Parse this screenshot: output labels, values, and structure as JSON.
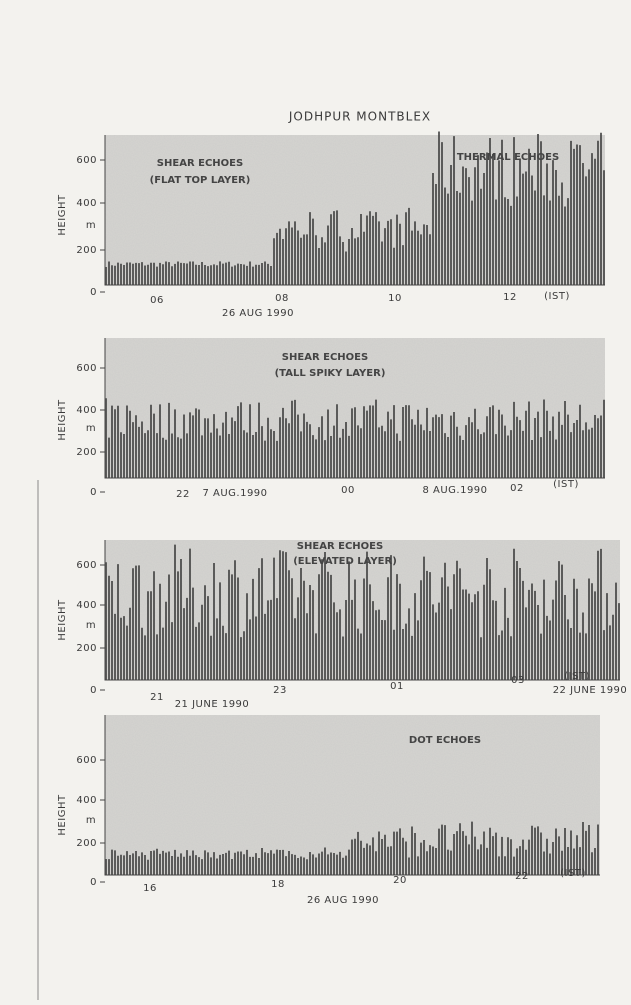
{
  "title": "JODHPUR MONTBLEX",
  "panels": [
    {
      "annotations": [
        "SHEAR ECHOES",
        "(FLAT TOP LAYER)",
        "THERMAL ECHOES"
      ],
      "y_axis_label": "HEIGHT",
      "y_unit": "m",
      "y_ticks": [
        "600",
        "400",
        "200",
        "0"
      ],
      "x_ticks": [
        "06",
        "08",
        "10",
        "12",
        "(IST)"
      ],
      "date_labels": [
        "26 AUG 1990"
      ]
    },
    {
      "annotations": [
        "SHEAR ECHOES",
        "(TALL SPIKY LAYER)"
      ],
      "y_axis_label": "HEIGHT",
      "y_unit": "m",
      "y_ticks": [
        "600",
        "400",
        "200",
        "0"
      ],
      "x_ticks": [
        "22",
        "00",
        "02",
        "(IST)"
      ],
      "date_labels": [
        "7 AUG.1990",
        "8 AUG.1990"
      ]
    },
    {
      "annotations": [
        "SHEAR ECHOES",
        "(ELEVATED LAYER)"
      ],
      "y_axis_label": "HEIGHT",
      "y_unit": "m",
      "y_ticks": [
        "600",
        "400",
        "200",
        "0"
      ],
      "x_ticks": [
        "21",
        "23",
        "01",
        "03",
        "(IST)"
      ],
      "date_labels": [
        "21 JUNE 1990",
        "22 JUNE 1990"
      ]
    },
    {
      "annotations": [
        "DOT ECHOES"
      ],
      "y_axis_label": "HEIGHT",
      "y_unit": "m",
      "y_ticks": [
        "600",
        "400",
        "200",
        "0"
      ],
      "x_ticks": [
        "16",
        "18",
        "20",
        "22",
        "(IST)"
      ],
      "date_labels": [
        "26 AUG 1990"
      ]
    }
  ]
}
